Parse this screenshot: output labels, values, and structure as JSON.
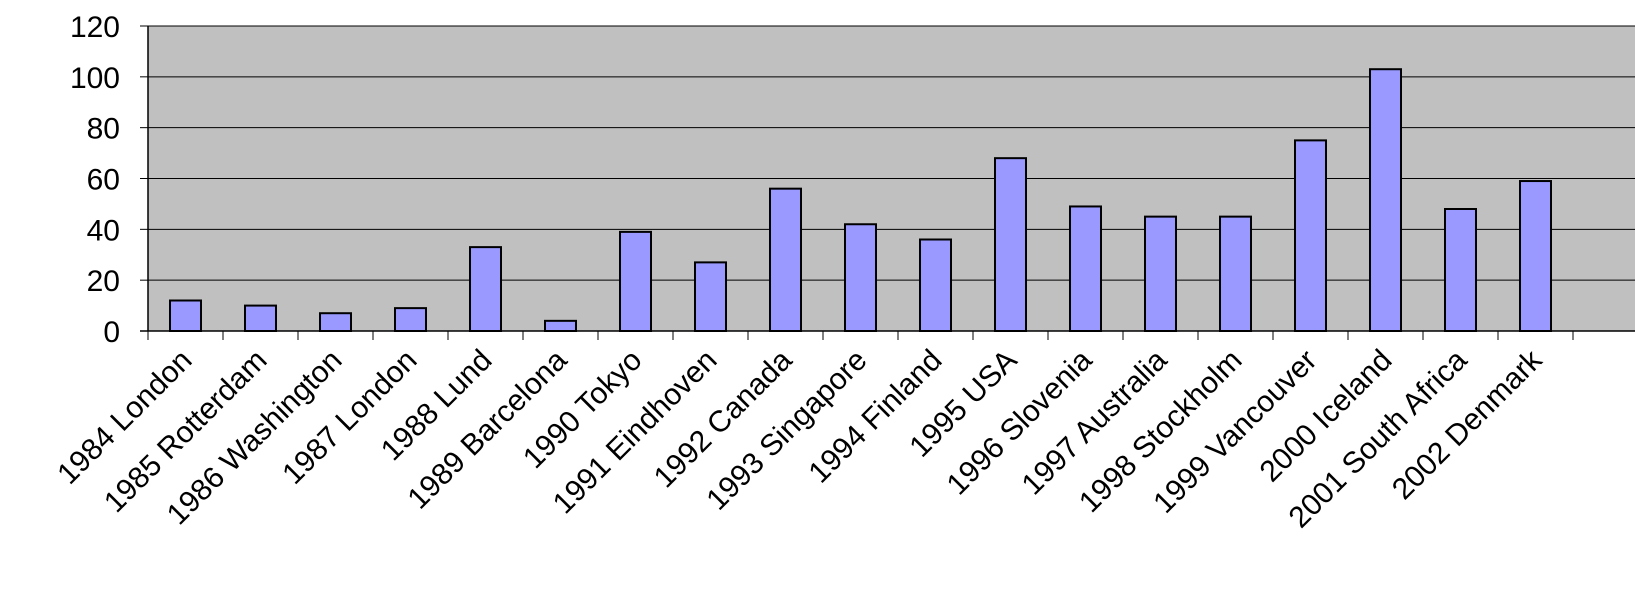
{
  "chart_data": {
    "type": "bar",
    "title": "",
    "xlabel": "",
    "ylabel": "",
    "ylim": [
      0,
      120
    ],
    "yticks": [
      0,
      20,
      40,
      60,
      80,
      100,
      120
    ],
    "grid": true,
    "legend": "none",
    "categories": [
      "1984 London",
      "1985 Rotterdam",
      "1986 Washington",
      "1987 London",
      "1988 Lund",
      "1989 Barcelona",
      "1990 Tokyo",
      "1991 Eindhoven",
      "1992 Canada",
      "1993 Singapore",
      "1994 Finland",
      "1995 USA",
      "1996 Slovenia",
      "1997 Australia",
      "1998 Stockholm",
      "1999 Vancouver",
      "2000 Iceland",
      "2001 South Africa",
      "2002 Denmark"
    ],
    "values": [
      12,
      10,
      7,
      9,
      33,
      4,
      39,
      27,
      56,
      42,
      36,
      68,
      49,
      45,
      45,
      75,
      103,
      48,
      59
    ],
    "colors": {
      "plot_background": "#c0c0c0",
      "bar_fill": "#9999ff",
      "bar_stroke": "#000000",
      "gridline": "#000000"
    }
  }
}
